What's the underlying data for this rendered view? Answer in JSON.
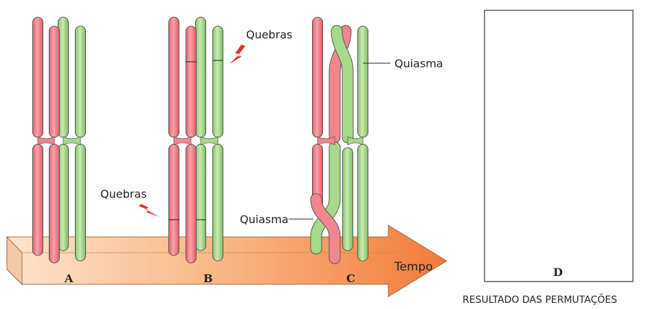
{
  "stages": {
    "a": "A",
    "b": "B",
    "c": "C",
    "d": "D"
  },
  "arrow_label": "Tempo",
  "labels": {
    "breaks_top": "Quebras",
    "breaks_bottom": "Quebras",
    "chiasma_top": "Quiasma",
    "chiasma_bottom": "Quiasma"
  },
  "result_caption": "RESULTADO DAS PERMUTAÇÕES",
  "colors": {
    "maternal_red": "#f2868f",
    "paternal_green": "#a6d98a",
    "arrow_orange": "#f6a05a",
    "outline": "#444444"
  }
}
